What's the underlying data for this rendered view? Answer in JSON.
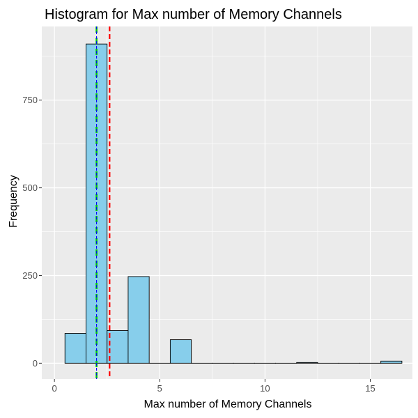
{
  "chart_data": {
    "type": "bar",
    "subtype": "histogram",
    "title": "Histogram for Max number of Memory Channels",
    "xlabel": "Max number of Memory Channels",
    "ylabel": "Frequency",
    "xlim": [
      -0.6,
      17.0
    ],
    "ylim": [
      -45,
      960
    ],
    "x_ticks": [
      0,
      5,
      10,
      15
    ],
    "y_ticks": [
      0,
      250,
      500,
      750
    ],
    "grid": true,
    "bin_width": 1,
    "bins": [
      {
        "x": 1,
        "count": 85
      },
      {
        "x": 2,
        "count": 910
      },
      {
        "x": 3,
        "count": 93
      },
      {
        "x": 4,
        "count": 247
      },
      {
        "x": 5,
        "count": 0
      },
      {
        "x": 6,
        "count": 67
      },
      {
        "x": 7,
        "count": 0
      },
      {
        "x": 8,
        "count": 0
      },
      {
        "x": 9,
        "count": 0
      },
      {
        "x": 10,
        "count": 0
      },
      {
        "x": 11,
        "count": 0
      },
      {
        "x": 12,
        "count": 2
      },
      {
        "x": 13,
        "count": 0
      },
      {
        "x": 14,
        "count": 0
      },
      {
        "x": 15,
        "count": 0
      },
      {
        "x": 16,
        "count": 6
      }
    ],
    "reference_lines": [
      {
        "x": 2.0,
        "color": "#00cc00",
        "style": "long-dash"
      },
      {
        "x": 2.0,
        "color": "#0000ff",
        "style": "short-dash"
      },
      {
        "x": 2.62,
        "color": "#ff0000",
        "style": "dash"
      }
    ],
    "colors": {
      "bar_fill": "#87ceeb",
      "bar_stroke": "#000000",
      "panel_background": "#ebebeb",
      "grid": "#ffffff"
    }
  }
}
